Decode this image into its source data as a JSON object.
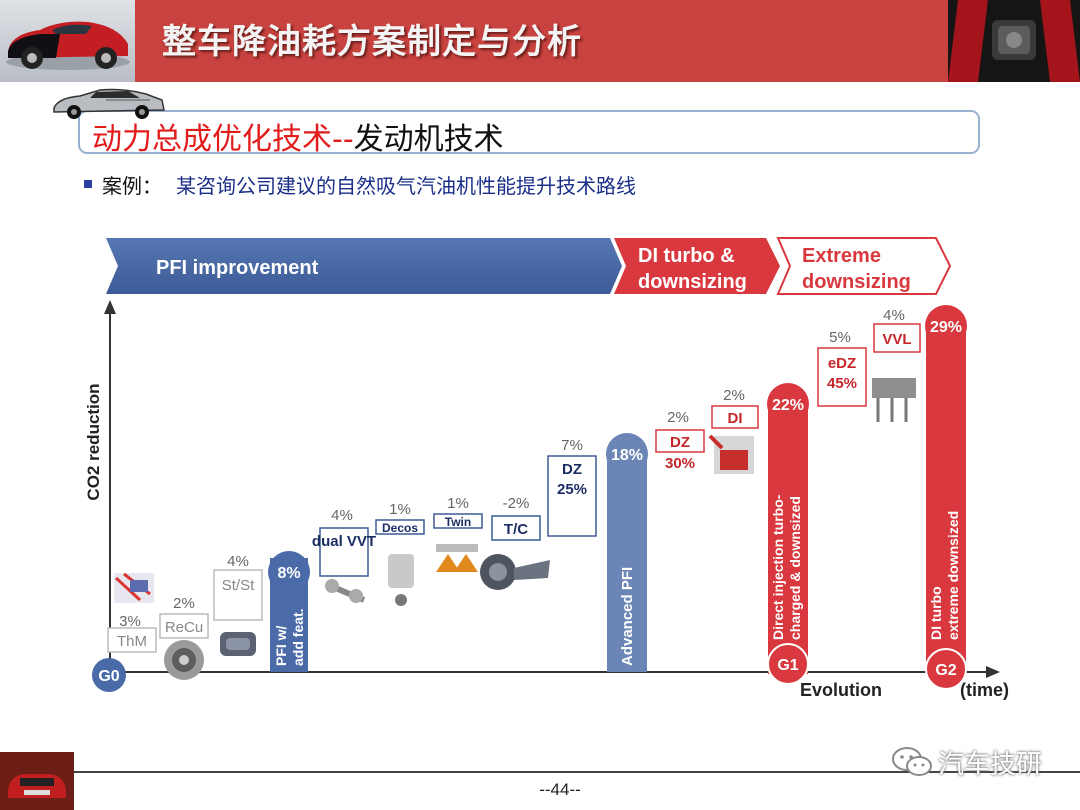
{
  "header": {
    "title": "整车降油耗方案制定与分析"
  },
  "section": {
    "title_red": "动力总成优化技术--",
    "title_black": "发动机技术"
  },
  "bullet": {
    "label": "案例：",
    "text": "某咨询公司建议的自然吸气汽油机性能提升技术路线"
  },
  "chart_data": {
    "type": "bar",
    "phases": [
      "PFI improvement",
      "DI turbo &",
      "downsizing",
      "Extreme",
      "downsizing"
    ],
    "ylabel": "CO2 reduction",
    "xlabel": "Evolution",
    "x_unit": "(time)",
    "milestones": [
      {
        "label": "G0"
      },
      {
        "label": "G1",
        "total": "22%",
        "text_line1": "Direct injection turbo-",
        "text_line2": "charged & downsized"
      },
      {
        "label": "G2",
        "total": "29%",
        "text_line1": "DI turbo",
        "text_line2": "extreme downsized"
      }
    ],
    "pillars": [
      {
        "total": "8%",
        "text_line1": "PFI w/",
        "text_line2": "add feat."
      },
      {
        "total": "18%",
        "text_line1": "Advanced PFI"
      }
    ],
    "steps": [
      {
        "name": "ThM",
        "gain": "3%"
      },
      {
        "name": "ReCu",
        "gain": "2%"
      },
      {
        "name": "St/St",
        "gain": "4%"
      },
      {
        "name": "dual VVT",
        "gain": "4%"
      },
      {
        "name": "Decos",
        "gain": "1%"
      },
      {
        "name": "Twin",
        "gain": "1%"
      },
      {
        "name": "T/C",
        "gain": "-2%"
      },
      {
        "name": "DZ",
        "sub": "25%",
        "gain": "7%"
      },
      {
        "name": "DZ",
        "sub": "30%",
        "gain": "2%"
      },
      {
        "name": "DI",
        "gain": "2%"
      },
      {
        "name": "eDZ",
        "sub": "45%",
        "gain": "5%"
      },
      {
        "name": "VVL",
        "gain": "4%"
      }
    ],
    "colors": {
      "blue": "#4a6aa8",
      "blue_bar": "#6a85b6",
      "red": "#d9393e"
    }
  },
  "footer": {
    "page": "--44--",
    "watermark": "汽车技研"
  }
}
